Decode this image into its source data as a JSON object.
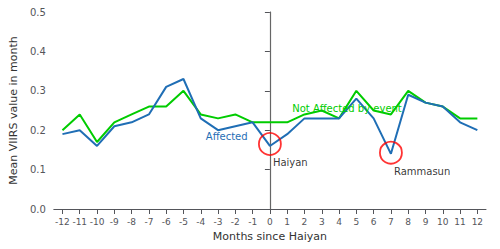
{
  "chart_data": {
    "type": "line",
    "x_label": "Months since Haiyan",
    "y_label": "Mean VIIRS value in month",
    "x": [
      -12,
      -11,
      -10,
      -9,
      -8,
      -7,
      -6,
      -5,
      -4,
      -3,
      -2,
      -1,
      0,
      1,
      2,
      3,
      4,
      5,
      6,
      7,
      8,
      9,
      10,
      11,
      12
    ],
    "series": [
      {
        "name": "Not Affected by event",
        "color": "#00cc00",
        "values": [
          0.2,
          0.24,
          0.17,
          0.22,
          0.24,
          0.26,
          0.26,
          0.3,
          0.24,
          0.23,
          0.24,
          0.22,
          0.22,
          0.22,
          0.24,
          0.25,
          0.23,
          0.3,
          0.25,
          0.24,
          0.3,
          0.27,
          0.26,
          0.23,
          0.23
        ]
      },
      {
        "name": "Affected",
        "color": "#1f6eb5",
        "values": [
          0.19,
          0.2,
          0.16,
          0.21,
          0.22,
          0.24,
          0.31,
          0.33,
          0.23,
          0.2,
          0.21,
          0.22,
          0.16,
          0.19,
          0.23,
          0.23,
          0.23,
          0.28,
          0.23,
          0.14,
          0.29,
          0.27,
          0.26,
          0.22,
          0.2
        ]
      }
    ],
    "vline": {
      "x": 0,
      "color": "#666666"
    },
    "highlights": [
      {
        "x": 0,
        "y": 0.165,
        "label": "Haiyan",
        "color": "red"
      },
      {
        "x": 7,
        "y": 0.143,
        "label": "Rammasun",
        "color": "red"
      }
    ],
    "xlim": [
      -12.5,
      12.5
    ],
    "xticks": [
      -12,
      -11,
      -10,
      -9,
      -8,
      -7,
      -6,
      -5,
      -4,
      -3,
      -2,
      -1,
      0,
      1,
      2,
      3,
      4,
      5,
      6,
      7,
      8,
      9,
      10,
      11,
      12
    ],
    "ylim": [
      0.0,
      0.5
    ],
    "yticks": [
      {
        "value": 0.0,
        "label": "0.0"
      },
      0.1,
      0.2,
      0.3,
      0.4,
      0.5
    ],
    "grid": false
  }
}
